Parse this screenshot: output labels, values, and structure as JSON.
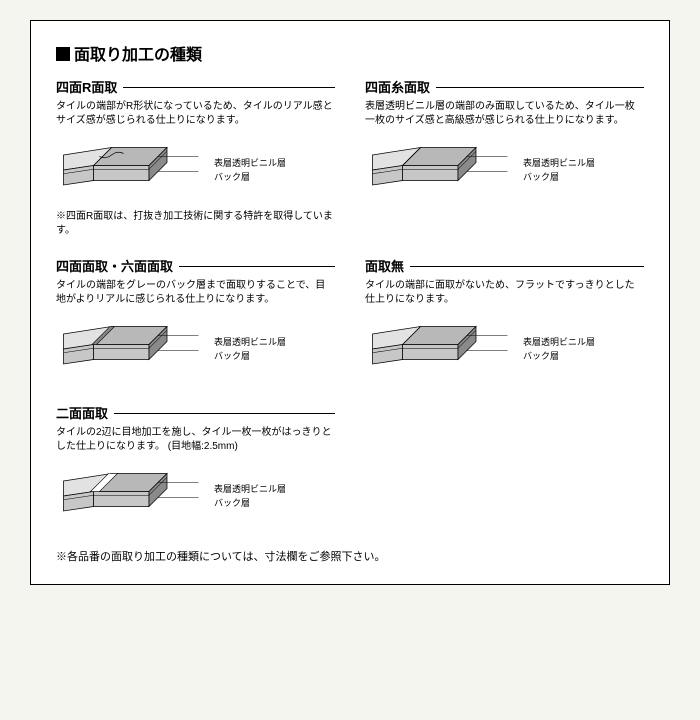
{
  "title": "面取り加工の種類",
  "layer_labels": {
    "top": "表層透明ビニル層",
    "bottom": "バック層"
  },
  "colors": {
    "tile_top_light": "#e2e2e2",
    "tile_top_dark": "#b8b8b8",
    "tile_side": "#8a8a8a",
    "tile_front": "#c7c7c7",
    "line": "#000000",
    "layer_line": "#555555"
  },
  "cells": [
    {
      "title": "四面R面取",
      "desc": "タイルの端部がR形状になっているため、タイルのリアル感とサイズ感が感じられる仕上りになります。",
      "note": "※四面R面取は、打抜き加工技術に関する特許を取得しています。",
      "type": "r-bevel"
    },
    {
      "title": "四面糸面取",
      "desc": "表層透明ビニル層の端部のみ面取しているため、タイル一枚一枚のサイズ感と高級感が感じられる仕上りになります。",
      "type": "thread-bevel"
    },
    {
      "title": "四面面取・六面面取",
      "desc": "タイルの端部をグレーのバック層まで面取りすることで、目地がよりリアルに感じられる仕上りになります。",
      "type": "full-bevel"
    },
    {
      "title": "面取無",
      "desc": "タイルの端部に面取がないため、フラットですっきりとした仕上りになります。",
      "type": "no-bevel"
    },
    {
      "title": "二面面取",
      "desc": "タイルの2辺に目地加工を施し、タイル一枚一枚がはっきりとした仕上りになります。\n(目地幅:2.5mm)",
      "type": "two-bevel"
    }
  ],
  "footnote": "※各品番の面取り加工の種類については、寸法欄をご参照下さい。"
}
